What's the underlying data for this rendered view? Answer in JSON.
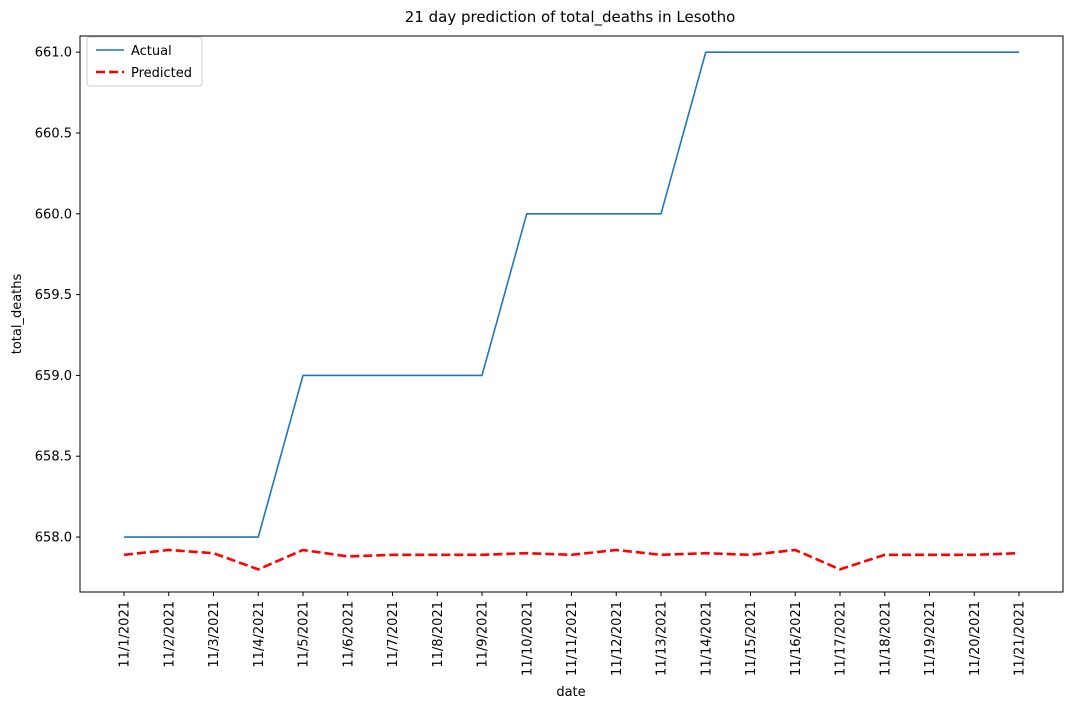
{
  "chart_data": {
    "type": "line",
    "title": "21 day prediction of total_deaths in Lesotho",
    "xlabel": "date",
    "ylabel": "total_deaths",
    "x": [
      "11/1/2021",
      "11/2/2021",
      "11/3/2021",
      "11/4/2021",
      "11/5/2021",
      "11/6/2021",
      "11/7/2021",
      "11/8/2021",
      "11/9/2021",
      "11/10/2021",
      "11/11/2021",
      "11/12/2021",
      "11/13/2021",
      "11/14/2021",
      "11/15/2021",
      "11/16/2021",
      "11/17/2021",
      "11/18/2021",
      "11/19/2021",
      "11/20/2021",
      "11/21/2021"
    ],
    "ylim": [
      657.66,
      661.1
    ],
    "yticks": [
      "658.0",
      "658.5",
      "659.0",
      "659.5",
      "660.0",
      "660.5",
      "661.0"
    ],
    "legend_position": "top-left",
    "grid": false,
    "series": [
      {
        "name": "Actual",
        "color": "#1f77b4",
        "style": "solid",
        "values": [
          658,
          658,
          658,
          658,
          659,
          659,
          659,
          659,
          659,
          660,
          660,
          660,
          660,
          661,
          661,
          661,
          661,
          661,
          661,
          661,
          661
        ]
      },
      {
        "name": "Predicted",
        "color": "#ff0000",
        "style": "dashed",
        "values": [
          657.89,
          657.92,
          657.9,
          657.8,
          657.92,
          657.88,
          657.89,
          657.89,
          657.89,
          657.9,
          657.89,
          657.92,
          657.89,
          657.9,
          657.89,
          657.92,
          657.8,
          657.89,
          657.89,
          657.89,
          657.9
        ]
      }
    ]
  }
}
